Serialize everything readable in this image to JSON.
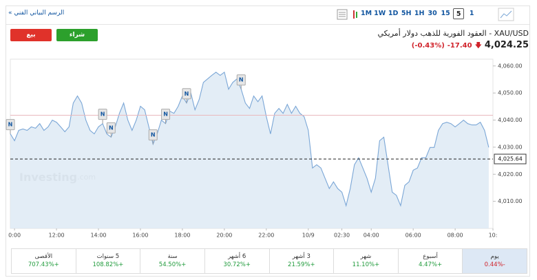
{
  "toolbar": {
    "link": "الرسم البياني الفني »",
    "intervals": [
      "1M",
      "1W",
      "1D",
      "5H",
      "1H",
      "30",
      "15",
      "5",
      "1"
    ],
    "selected": 7
  },
  "buttons": {
    "sell": "بيع",
    "buy": "شراء"
  },
  "header": {
    "title": "XAU/USD - العقود الفورية للذهب دولار أمريكي",
    "price": "4,024.25",
    "change": "-17.40",
    "change_pct": "(-0.43%)"
  },
  "chart_data": {
    "type": "area",
    "color": "#7aa6d6",
    "fill": "#dce8f4",
    "values": [
      4034.9,
      4032.4,
      4036.2,
      4036.7,
      4036.2,
      4037.5,
      4037.0,
      4038.7,
      4036.2,
      4037.5,
      4040.0,
      4039.2,
      4037.5,
      4035.7,
      4037.5,
      4046.3,
      4048.9,
      4046.3,
      4040.0,
      4036.2,
      4034.9,
      4037.5,
      4038.7,
      4034.9,
      4033.7,
      4037.5,
      4042.5,
      4046.3,
      4040.0,
      4036.2,
      4040.0,
      4045.1,
      4043.8,
      4037.5,
      4031.1,
      4034.9,
      4040.0,
      4038.7,
      4043.3,
      4042.5,
      4045.1,
      4048.9,
      4046.3,
      4050.1,
      4043.8,
      4047.6,
      4053.9,
      4055.2,
      4056.5,
      4057.7,
      4056.5,
      4057.7,
      4051.4,
      4053.9,
      4055.2,
      4051.4,
      4046.3,
      4044.3,
      4048.9,
      4046.8,
      4048.9,
      4041.3,
      4034.9,
      4042.5,
      4044.3,
      4042.5,
      4045.8,
      4042.5,
      4045.1,
      4042.5,
      4041.3,
      4036.2,
      4022.3,
      4023.5,
      4022.3,
      4018.5,
      4014.7,
      4017.2,
      4014.7,
      4013.4,
      4008.4,
      4014.7,
      4023.5,
      4026.1,
      4022.3,
      4018.5,
      4013.4,
      4018.5,
      4032.4,
      4033.7,
      4023.5,
      4013.4,
      4012.2,
      4008.4,
      4015.9,
      4017.2,
      4021.5,
      4022.3,
      4026.1,
      4026.1,
      4029.9,
      4029.9,
      4036.2,
      4038.7,
      4039.2,
      4038.7,
      4037.5,
      4038.7,
      4040.0,
      4038.7,
      4038.2,
      4038.2,
      4039.2,
      4036.2,
      4029.9
    ],
    "xlim": [
      0,
      115
    ],
    "xticks": [
      {
        "value": 1,
        "label": "0:00"
      },
      {
        "value": 11,
        "label": "12:00"
      },
      {
        "value": 21,
        "label": "14:00"
      },
      {
        "value": 31,
        "label": "16:00"
      },
      {
        "value": 41,
        "label": "18:00"
      },
      {
        "value": 51,
        "label": "20:00"
      },
      {
        "value": 61,
        "label": "22:00"
      },
      {
        "value": 71,
        "label": "10/9"
      },
      {
        "value": 79,
        "label": "02:30"
      },
      {
        "value": 86,
        "label": "04:00"
      },
      {
        "value": 96,
        "label": "06:00"
      },
      {
        "value": 106,
        "label": "08:00"
      },
      {
        "value": 115,
        "label": "10:"
      }
    ],
    "ylim": [
      4000,
      4062.5
    ],
    "yticks": [
      {
        "value": 4010,
        "label": "4,010.00"
      },
      {
        "value": 4020,
        "label": "4,020.00"
      },
      {
        "value": 4030,
        "label": "4,030.00"
      },
      {
        "value": 4040,
        "label": "4,040.00"
      },
      {
        "value": 4050,
        "label": "4,050.00"
      },
      {
        "value": 4060,
        "label": "4,060.00"
      }
    ],
    "grid": false,
    "prev_close_line": 4041.8,
    "current_line": {
      "value": 4025.64,
      "label": "4,025.64"
    },
    "markers": [
      {
        "index": 0,
        "label": "N"
      },
      {
        "index": 22,
        "label": "N"
      },
      {
        "index": 24,
        "label": "N"
      },
      {
        "index": 34,
        "label": "N"
      },
      {
        "index": 37,
        "label": "N"
      },
      {
        "index": 42,
        "label": "N"
      },
      {
        "index": 55,
        "label": "N"
      }
    ],
    "watermark": {
      "brand": "Investing",
      "suffix": ".com"
    }
  },
  "performance": [
    {
      "label": "يوم",
      "value": "-0.44%"
    },
    {
      "label": "أسبوع",
      "value": "+4.47%"
    },
    {
      "label": "شهر",
      "value": "+11.10%"
    },
    {
      "label": "3 أشهر",
      "value": "+21.59%"
    },
    {
      "label": "6 أشهر",
      "value": "+30.72%"
    },
    {
      "label": "سنة",
      "value": "+54.50%"
    },
    {
      "label": "5 سنوات",
      "value": "+108.82%"
    },
    {
      "label": "الأقصى",
      "value": "+707.43%"
    }
  ]
}
